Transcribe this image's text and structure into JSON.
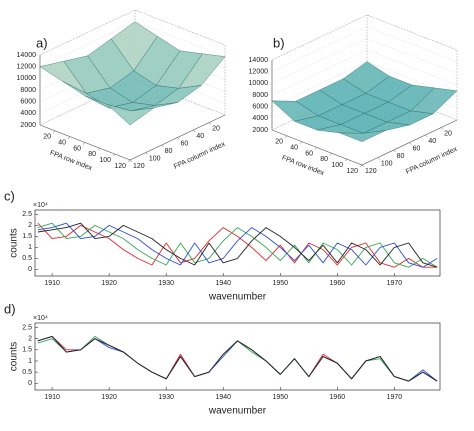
{
  "chart_data": [
    {
      "type": "surface3d",
      "panel_label": "a)",
      "xlabel": "FPA row index",
      "ylabel": "FPA column index",
      "x": [
        0,
        30,
        60,
        90,
        120
      ],
      "y": [
        0,
        30,
        60,
        90,
        120
      ],
      "z": [
        [
          12000,
          11000,
          10000,
          11000,
          12000
        ],
        [
          11000,
          7000,
          6000,
          7000,
          11000
        ],
        [
          10000,
          6000,
          5000,
          6000,
          10000
        ],
        [
          11000,
          7000,
          6000,
          7000,
          10000
        ],
        [
          12000,
          9000,
          8000,
          9000,
          8000
        ]
      ],
      "xlim": [
        0,
        120
      ],
      "ylim": [
        0,
        120
      ],
      "zlim": [
        2000,
        14000
      ],
      "xticks": [
        20,
        40,
        60,
        80,
        100,
        120
      ],
      "yticks": [
        20,
        40,
        60,
        80,
        100,
        120
      ],
      "zticks": [
        2000,
        4000,
        6000,
        8000,
        10000,
        12000,
        14000
      ]
    },
    {
      "type": "surface3d",
      "panel_label": "b)",
      "xlabel": "FPA row index",
      "ylabel": "FPA column index",
      "x": [
        0,
        30,
        60,
        90,
        120
      ],
      "y": [
        0,
        30,
        60,
        90,
        120
      ],
      "z": [
        [
          6000,
          5000,
          5000,
          5000,
          7000
        ],
        [
          5000,
          4000,
          4000,
          4000,
          5000
        ],
        [
          5000,
          4000,
          4000,
          4000,
          5000
        ],
        [
          6000,
          4000,
          4000,
          4000,
          6000
        ],
        [
          7000,
          5000,
          5000,
          6000,
          6000
        ]
      ],
      "xlim": [
        0,
        120
      ],
      "ylim": [
        0,
        120
      ],
      "zlim": [
        2000,
        14000
      ],
      "xticks": [
        20,
        40,
        60,
        80,
        100,
        120
      ],
      "yticks": [
        20,
        40,
        60,
        80,
        100,
        120
      ],
      "zticks": [
        2000,
        4000,
        6000,
        8000,
        10000,
        12000,
        14000
      ]
    },
    {
      "type": "line",
      "panel_label": "c)",
      "xlabel": "wavenumber",
      "ylabel": "counts",
      "y_exponent_label": "×10⁴",
      "x": [
        1907.5,
        1910,
        1912.5,
        1915,
        1917.5,
        1920,
        1922.5,
        1925,
        1927.5,
        1930,
        1932.5,
        1935,
        1937.5,
        1940,
        1942.5,
        1945,
        1947.5,
        1950,
        1952.5,
        1955,
        1957.5,
        1960,
        1962.5,
        1965,
        1967.5,
        1970,
        1972.5,
        1975,
        1977.5
      ],
      "series": [
        {
          "color": "#e8262a",
          "values": [
            2.1,
            1.4,
            1.5,
            2.0,
            1.7,
            1.4,
            0.9,
            0.5,
            0.2,
            1.2,
            0.3,
            0.5,
            1.3,
            1.9,
            1.5,
            1.0,
            0.4,
            1.1,
            0.3,
            1.2,
            0.9,
            0.2,
            1.0,
            1.2,
            0.3,
            0.1,
            0.5,
            0.1,
            0.1
          ]
        },
        {
          "color": "#35a853",
          "values": [
            1.9,
            2.1,
            1.4,
            1.5,
            2.0,
            1.7,
            1.4,
            0.9,
            0.5,
            0.2,
            1.2,
            0.3,
            0.5,
            1.3,
            1.9,
            1.5,
            1.0,
            0.4,
            1.1,
            0.3,
            1.2,
            0.9,
            0.2,
            1.0,
            1.2,
            0.3,
            0.1,
            0.5,
            0.1
          ]
        },
        {
          "color": "#2a4fd8",
          "values": [
            1.8,
            1.9,
            2.1,
            1.4,
            1.5,
            2.0,
            1.7,
            1.4,
            0.9,
            0.5,
            0.2,
            1.2,
            0.3,
            0.5,
            1.3,
            1.9,
            1.5,
            1.0,
            0.4,
            1.1,
            0.3,
            1.2,
            0.9,
            0.2,
            1.0,
            1.2,
            0.3,
            0.1,
            0.5
          ]
        },
        {
          "color": "#222222",
          "values": [
            1.7,
            1.8,
            1.9,
            2.1,
            1.4,
            1.5,
            2.0,
            1.7,
            1.4,
            0.9,
            0.5,
            0.2,
            1.2,
            0.3,
            0.5,
            1.3,
            1.9,
            1.5,
            1.0,
            0.4,
            1.1,
            0.3,
            1.2,
            0.9,
            0.2,
            1.0,
            1.2,
            0.3,
            0.1
          ]
        }
      ],
      "xlim": [
        1907,
        1978
      ],
      "ylim": [
        -0.3,
        2.7
      ],
      "xticks": [
        1910,
        1920,
        1930,
        1940,
        1950,
        1960,
        1970
      ],
      "yticks": [
        0,
        0.5,
        1,
        1.5,
        2,
        2.5
      ]
    },
    {
      "type": "line",
      "panel_label": "d)",
      "xlabel": "wavenumber",
      "ylabel": "counts",
      "y_exponent_label": "×10⁴",
      "x": [
        1907.5,
        1910,
        1912.5,
        1915,
        1917.5,
        1920,
        1922.5,
        1925,
        1927.5,
        1930,
        1932.5,
        1935,
        1937.5,
        1940,
        1942.5,
        1945,
        1947.5,
        1950,
        1952.5,
        1955,
        1957.5,
        1960,
        1962.5,
        1965,
        1967.5,
        1970,
        1972.5,
        1975,
        1977.5
      ],
      "series": [
        {
          "color": "#e8262a",
          "values": [
            1.9,
            2.1,
            1.5,
            1.5,
            2.0,
            1.7,
            1.4,
            0.9,
            0.5,
            0.2,
            1.3,
            0.3,
            0.5,
            1.3,
            1.9,
            1.5,
            1.0,
            0.4,
            1.1,
            0.3,
            1.3,
            0.9,
            0.2,
            1.0,
            1.2,
            0.3,
            0.1,
            0.5,
            0.1
          ]
        },
        {
          "color": "#35a853",
          "values": [
            1.8,
            2.0,
            1.4,
            1.5,
            2.1,
            1.7,
            1.4,
            0.9,
            0.5,
            0.2,
            1.2,
            0.3,
            0.5,
            1.3,
            1.9,
            1.4,
            1.0,
            0.4,
            1.1,
            0.3,
            1.2,
            0.9,
            0.2,
            1.0,
            1.1,
            0.3,
            0.1,
            0.5,
            0.1
          ]
        },
        {
          "color": "#2a4fd8",
          "values": [
            1.9,
            2.1,
            1.4,
            1.5,
            2.0,
            1.6,
            1.4,
            0.9,
            0.5,
            0.2,
            1.2,
            0.3,
            0.5,
            1.2,
            1.9,
            1.5,
            1.0,
            0.4,
            1.1,
            0.3,
            1.2,
            0.9,
            0.2,
            1.0,
            1.2,
            0.3,
            0.1,
            0.6,
            0.1
          ]
        },
        {
          "color": "#222222",
          "values": [
            1.9,
            2.1,
            1.4,
            1.5,
            2.0,
            1.7,
            1.4,
            0.9,
            0.5,
            0.2,
            1.2,
            0.3,
            0.5,
            1.3,
            1.9,
            1.5,
            1.0,
            0.4,
            1.1,
            0.3,
            1.2,
            0.9,
            0.2,
            1.0,
            1.2,
            0.3,
            0.1,
            0.5,
            0.1
          ]
        }
      ],
      "xlim": [
        1907,
        1978
      ],
      "ylim": [
        -0.3,
        2.7
      ],
      "xticks": [
        1910,
        1920,
        1930,
        1940,
        1950,
        1960,
        1970
      ],
      "yticks": [
        0,
        0.5,
        1,
        1.5,
        2,
        2.5
      ]
    }
  ]
}
